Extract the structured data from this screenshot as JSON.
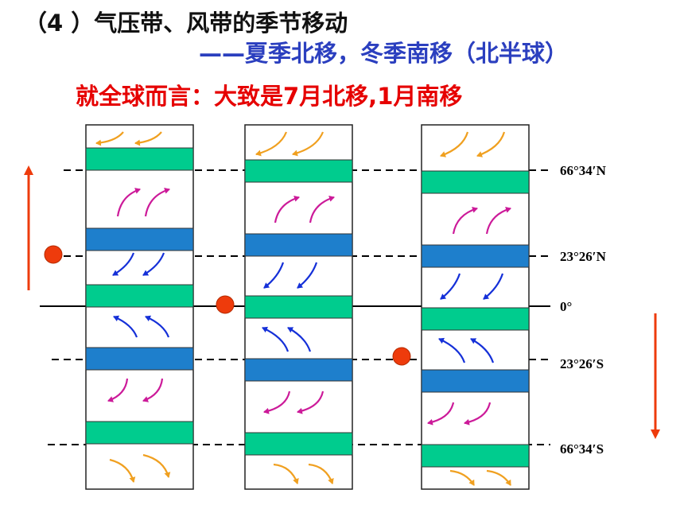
{
  "heading": "（4 ）气压带、风带的季节移动",
  "subheading": "——夏季北移，冬季南移（北半球）",
  "global_note": "就全球而言：大致是7月北移,1月南移",
  "latitudes": [
    {
      "key": "n66",
      "label": "66°34′N"
    },
    {
      "key": "n23",
      "label": "23°26′N"
    },
    {
      "key": "eq",
      "label": "0°"
    },
    {
      "key": "s23",
      "label": "23°26′S"
    },
    {
      "key": "s66",
      "label": "66°34′S"
    }
  ],
  "colors": {
    "low_pressure_belt": "#00cc8e",
    "high_pressure_belt": "#1e7fcc",
    "polar_easterlies": "#f0a020",
    "westerlies": "#cc1a99",
    "trade_winds": "#1530d8",
    "sun_marker": "#ee3b0c",
    "shift_arrow": "#ee3b0c"
  },
  "panels": [
    {
      "name": "northern-summer",
      "shift": "north"
    },
    {
      "name": "equinox",
      "shift": "none"
    },
    {
      "name": "northern-winter",
      "shift": "south"
    }
  ]
}
